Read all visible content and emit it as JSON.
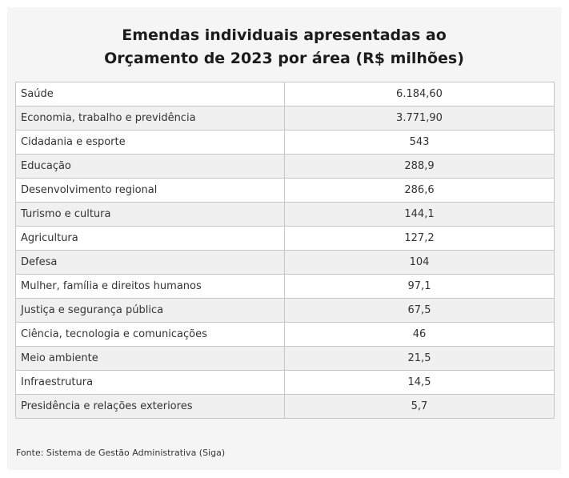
{
  "chart_data": {
    "type": "table",
    "title_line1": "Emendas individuais apresentadas ao",
    "title_line2": "Orçamento de 2023 por área (R$ milhões)",
    "categories": [
      "Saúde",
      "Economia, trabalho e previdência",
      "Cidadania e esporte",
      "Educação",
      "Desenvolvimento regional",
      "Turismo e cultura",
      "Agricultura",
      "Defesa",
      "Mulher, família e direitos humanos",
      "Justiça e segurança pública",
      "Ciência, tecnologia e comunicações",
      "Meio ambiente",
      "Infraestrutura",
      "Presidência e relações exteriores"
    ],
    "values": [
      6184.6,
      3771.9,
      543,
      288.9,
      286.6,
      144.1,
      127.2,
      104,
      97.1,
      67.5,
      46,
      21.5,
      14.5,
      5.7
    ],
    "value_labels": [
      "6.184,60",
      "3.771,90",
      "543",
      "288,9",
      "286,6",
      "144,1",
      "127,2",
      "104",
      "97,1",
      "67,5",
      "46",
      "21,5",
      "14,5",
      "5,7"
    ],
    "source": "Fonte: Sistema de Gestão Administrativa (Siga)"
  }
}
